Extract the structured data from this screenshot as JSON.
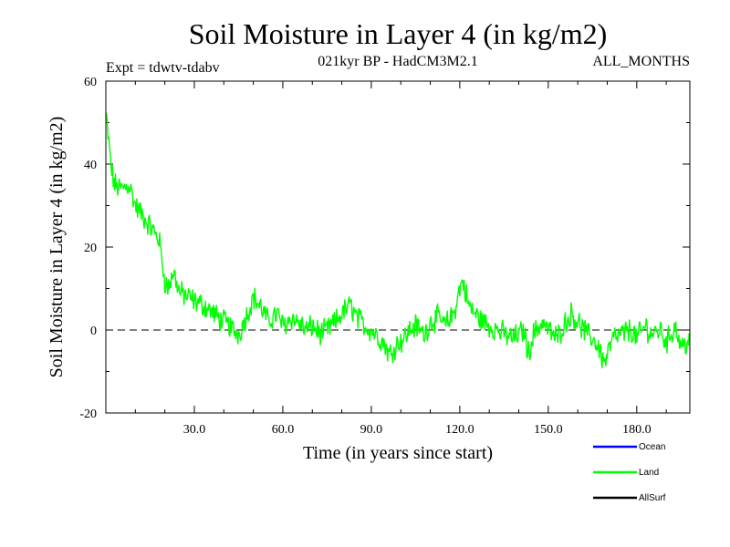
{
  "chart_data": {
    "type": "line",
    "title": "Soil Moisture in Layer 4 (in kg/m2)",
    "subtitle_left": "Expt = tdwtv-tdabv",
    "subtitle_center": "021kyr BP - HadCM3M2.1",
    "subtitle_right": "ALL_MONTHS",
    "xlabel": "Time (in years since start)",
    "ylabel": "Soil Moisture in Layer 4 (in kg/m2)",
    "xlim": [
      0,
      198
    ],
    "ylim": [
      -20,
      60
    ],
    "x_ticks": [
      30,
      60,
      90,
      120,
      150,
      180
    ],
    "x_tick_labels": [
      "30.0",
      "60.0",
      "90.0",
      "120.0",
      "150.0",
      "180.0"
    ],
    "y_ticks": [
      -20,
      0,
      20,
      40,
      60
    ],
    "y_tick_labels": [
      "-20",
      "0",
      "20",
      "40",
      "60"
    ],
    "zero_line": true,
    "legend": [
      {
        "name": "Ocean",
        "color": "#0000ff"
      },
      {
        "name": "Land",
        "color": "#00ff00"
      },
      {
        "name": "AllSurf",
        "color": "#000000"
      }
    ],
    "series": [
      {
        "name": "Land",
        "color": "#00ff00",
        "x": [
          0,
          1,
          2,
          3,
          5,
          8,
          10,
          12,
          14,
          16,
          18,
          19,
          20,
          21,
          23,
          25,
          28,
          30,
          33,
          35,
          38,
          40,
          42,
          43,
          45,
          48,
          50,
          53,
          55,
          58,
          60,
          63,
          65,
          68,
          70,
          73,
          75,
          78,
          80,
          83,
          85,
          88,
          90,
          93,
          95,
          96,
          97,
          99,
          101,
          103,
          105,
          108,
          110,
          113,
          115,
          118,
          120,
          121,
          122,
          123,
          125,
          128,
          130,
          133,
          135,
          138,
          140,
          142,
          143,
          145,
          148,
          150,
          153,
          155,
          158,
          160,
          163,
          165,
          167,
          169,
          170,
          172,
          175,
          178,
          180,
          183,
          185,
          188,
          190,
          193,
          195,
          197,
          198
        ],
        "y": [
          52,
          45,
          38,
          35,
          34,
          35,
          30,
          28,
          26,
          24,
          22,
          17,
          12,
          10,
          14,
          9,
          8,
          7,
          6,
          5,
          3,
          2,
          1,
          0,
          -1,
          4,
          8,
          5,
          2,
          4,
          1,
          3,
          2,
          0,
          1,
          -1,
          0,
          2,
          4,
          6,
          3,
          1,
          0,
          -2,
          -4,
          -6,
          -5,
          -3,
          -2,
          0,
          1,
          -1,
          2,
          3,
          1,
          4,
          10,
          12,
          9,
          6,
          4,
          2,
          1,
          0,
          -1,
          -2,
          -1,
          0,
          -6,
          -1,
          2,
          0,
          -2,
          1,
          4,
          2,
          -1,
          -2,
          -4,
          -8,
          -6,
          -2,
          -1,
          0,
          -2,
          1,
          -1,
          0,
          -3,
          1,
          -4,
          -3,
          -2
        ]
      }
    ]
  }
}
